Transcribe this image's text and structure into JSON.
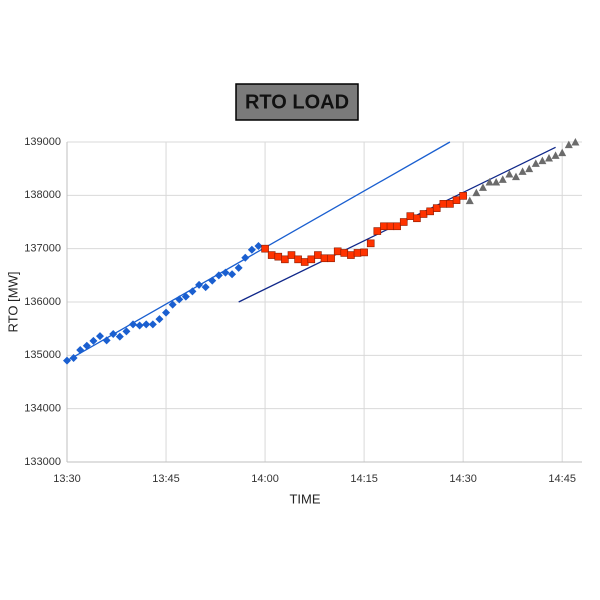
{
  "chart_data": {
    "type": "scatter",
    "title": "RTO LOAD",
    "x_label": "TIME",
    "y_label": "RTO [MW]",
    "xlim": [
      "13:30",
      "14:48"
    ],
    "xticks": [
      "13:30",
      "13:45",
      "14:00",
      "14:15",
      "14:30",
      "14:45"
    ],
    "ylim": [
      133000,
      139000
    ],
    "yticks": [
      133000,
      134000,
      135000,
      136000,
      137000,
      138000,
      139000
    ],
    "grid": true,
    "series": [
      {
        "color": "#1a5fd0",
        "marker": "diamond",
        "x": [
          "13:30",
          "13:31",
          "13:32",
          "13:33",
          "13:34",
          "13:35",
          "13:36",
          "13:37",
          "13:38",
          "13:39",
          "13:40",
          "13:41",
          "13:42",
          "13:43",
          "13:44",
          "13:45",
          "13:46",
          "13:47",
          "13:48",
          "13:49",
          "13:50",
          "13:51",
          "13:52",
          "13:53",
          "13:54",
          "13:55",
          "13:56",
          "13:57",
          "13:58",
          "13:59"
        ],
        "values": [
          134900,
          134950,
          135100,
          135180,
          135270,
          135360,
          135280,
          135400,
          135350,
          135450,
          135580,
          135560,
          135580,
          135580,
          135680,
          135800,
          135950,
          136050,
          136100,
          136200,
          136320,
          136280,
          136400,
          136500,
          136550,
          136520,
          136640,
          136830,
          136980,
          137050
        ]
      },
      {
        "color": "#ff3300",
        "marker": "square",
        "x": [
          "14:00",
          "14:01",
          "14:02",
          "14:03",
          "14:04",
          "14:05",
          "14:06",
          "14:07",
          "14:08",
          "14:09",
          "14:10",
          "14:11",
          "14:12",
          "14:13",
          "14:14",
          "14:15",
          "14:16",
          "14:17",
          "14:18",
          "14:19",
          "14:20",
          "14:21",
          "14:22",
          "14:23",
          "14:24",
          "14:25",
          "14:26",
          "14:27",
          "14:28",
          "14:29",
          "14:30"
        ],
        "values": [
          137000,
          136880,
          136850,
          136800,
          136880,
          136800,
          136750,
          136800,
          136880,
          136820,
          136820,
          136950,
          136920,
          136880,
          136920,
          136930,
          137100,
          137330,
          137420,
          137420,
          137420,
          137500,
          137610,
          137570,
          137650,
          137700,
          137760,
          137840,
          137840,
          137910,
          137990
        ]
      },
      {
        "color": "#6b6b6b",
        "marker": "triangle",
        "x": [
          "14:31",
          "14:32",
          "14:33",
          "14:34",
          "14:35",
          "14:36",
          "14:37",
          "14:38",
          "14:39",
          "14:40",
          "14:41",
          "14:42",
          "14:43",
          "14:44",
          "14:45",
          "14:46",
          "14:47"
        ],
        "values": [
          137900,
          138050,
          138150,
          138250,
          138250,
          138300,
          138400,
          138350,
          138450,
          138500,
          138600,
          138650,
          138700,
          138750,
          138800,
          138950,
          139000
        ]
      }
    ],
    "trendlines": [
      {
        "color": "#1a5fd0",
        "x": [
          "13:30",
          "14:28"
        ],
        "values": [
          134900,
          139000
        ]
      },
      {
        "color": "#10288a",
        "x": [
          "13:56",
          "14:44"
        ],
        "values": [
          136000,
          138900
        ]
      }
    ]
  }
}
